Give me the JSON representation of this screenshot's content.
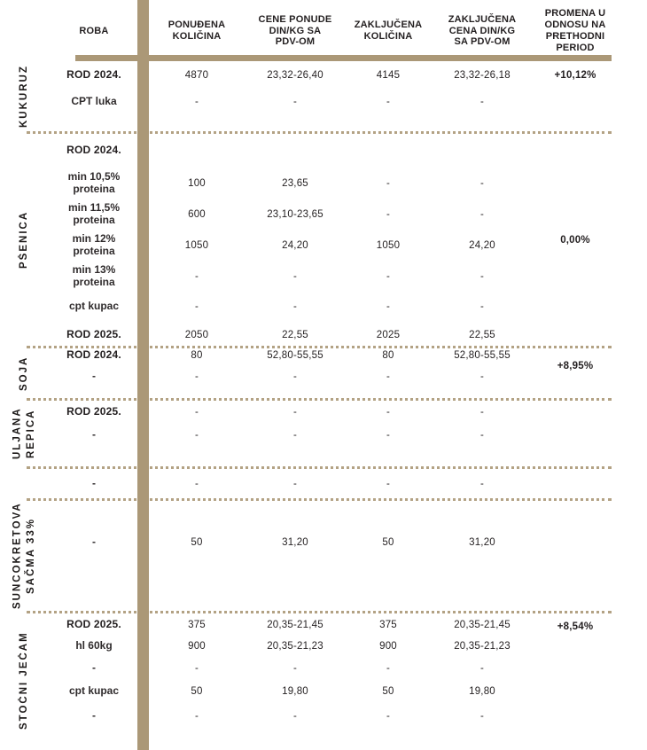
{
  "header": {
    "roba": "ROBA",
    "columns": [
      "PONUĐENA\nKOLIČINA",
      "CENE PONUDE\nDIN/KG SA\nPDV-OM",
      "ZAKLJUČENA\nKOLIČINA",
      "ZAKLJUČENA\nCENA DIN/KG\nSA PDV-OM",
      "PROMENA U\nODNOSU NA\nPRETHODNI\nPERIOD"
    ]
  },
  "colors": {
    "accent": "#ab9877",
    "dots": "#b3a284",
    "text": "#231f20"
  },
  "groups": [
    {
      "name": "KUKURUZ",
      "change": "+10,12%",
      "change_valign": "top",
      "rows": [
        {
          "label": "ROD 2024.",
          "bold": true,
          "values": [
            "4870",
            "23,32-26,40",
            "4145",
            "23,32-26,18"
          ]
        },
        {
          "label": "CPT luka",
          "bold": false,
          "values": [
            "-",
            "-",
            "-",
            "-"
          ]
        }
      ]
    },
    {
      "name": "PŠENICA",
      "change": "0,00%",
      "change_valign": "middle",
      "rows": [
        {
          "label": "ROD 2024.",
          "bold": true,
          "values": [
            "",
            "",
            "",
            ""
          ]
        },
        {
          "label": "min 10,5%\nproteina",
          "bold": false,
          "values": [
            "100",
            "23,65",
            "-",
            "-"
          ]
        },
        {
          "label": "min 11,5%\nproteina",
          "bold": false,
          "values": [
            "600",
            "23,10-23,65",
            "-",
            "-"
          ]
        },
        {
          "label": "min 12%\nproteina",
          "bold": false,
          "values": [
            "1050",
            "24,20",
            "1050",
            "24,20"
          ]
        },
        {
          "label": "min 13%\nproteina",
          "bold": false,
          "values": [
            "-",
            "-",
            "-",
            "-"
          ]
        },
        {
          "label": "cpt kupac",
          "bold": false,
          "values": [
            "-",
            "-",
            "-",
            "-"
          ]
        },
        {
          "label": "ROD 2025.",
          "bold": true,
          "values": [
            "2050",
            "22,55",
            "2025",
            "22,55"
          ]
        }
      ]
    },
    {
      "name": "SOJA",
      "change": "+8,95%",
      "change_valign": "top",
      "rows": [
        {
          "label": "ROD 2024.",
          "bold": true,
          "values": [
            "80",
            "52,80-55,55",
            "80",
            "52,80-55,55"
          ]
        },
        {
          "label": "-",
          "bold": false,
          "values": [
            "-",
            "-",
            "-",
            "-"
          ]
        }
      ]
    },
    {
      "name": "ULJANA\nREPICA",
      "change": "",
      "change_valign": "top",
      "rows": [
        {
          "label": "ROD 2025.",
          "bold": true,
          "values": [
            "-",
            "-",
            "-",
            "-"
          ]
        },
        {
          "label": "-",
          "bold": false,
          "values": [
            "-",
            "-",
            "-",
            "-"
          ]
        }
      ]
    },
    {
      "name": "",
      "change": "",
      "change_valign": "top",
      "rows": [
        {
          "label": "-",
          "bold": false,
          "values": [
            "-",
            "-",
            "-",
            "-"
          ]
        }
      ]
    },
    {
      "name": "SUNCOKRETOVA\nSAČMA 33%",
      "change": "",
      "change_valign": "top",
      "rows": [
        {
          "label": "-",
          "bold": false,
          "values": [
            "50",
            "31,20",
            "50",
            "31,20"
          ]
        }
      ]
    },
    {
      "name": "STOČNI JEČAM",
      "change": "+8,54%",
      "change_valign": "top",
      "rows": [
        {
          "label": "ROD 2025.",
          "bold": true,
          "values": [
            "375",
            "20,35-21,45",
            "375",
            "20,35-21,45"
          ]
        },
        {
          "label": "hl 60kg",
          "bold": false,
          "values": [
            "900",
            "20,35-21,23",
            "900",
            "20,35-21,23"
          ]
        },
        {
          "label": "-",
          "bold": false,
          "values": [
            "-",
            "-",
            "-",
            "-"
          ]
        },
        {
          "label": "cpt kupac",
          "bold": false,
          "values": [
            "50",
            "19,80",
            "50",
            "19,80"
          ]
        },
        {
          "label": "-",
          "bold": false,
          "values": [
            "-",
            "-",
            "-",
            "-"
          ]
        }
      ]
    }
  ]
}
